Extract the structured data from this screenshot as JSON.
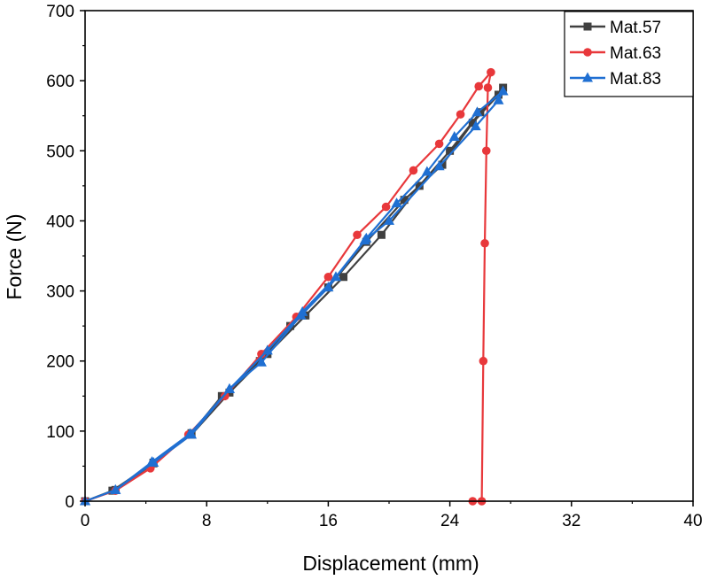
{
  "chart_data": {
    "type": "line",
    "title": "",
    "xlabel": "Displacement (mm)",
    "ylabel": "Force (N)",
    "xlim": [
      0,
      40
    ],
    "ylim": [
      0,
      700
    ],
    "xticks": [
      0,
      8,
      16,
      24,
      32,
      40
    ],
    "yticks": [
      0,
      100,
      200,
      300,
      400,
      500,
      600,
      700
    ],
    "grid": false,
    "legend_position": "top-right",
    "series": [
      {
        "name": "Mat.57",
        "color": "#404040",
        "marker": "square",
        "points": [
          [
            0,
            0
          ],
          [
            1.8,
            15
          ],
          [
            4.5,
            55
          ],
          [
            7,
            95
          ],
          [
            9.5,
            155
          ],
          [
            12,
            210
          ],
          [
            14.5,
            265
          ],
          [
            17,
            320
          ],
          [
            19.5,
            380
          ],
          [
            22,
            450
          ],
          [
            24,
            500
          ],
          [
            26,
            555
          ],
          [
            27.5,
            590
          ],
          [
            27.2,
            580
          ],
          [
            25.5,
            540
          ],
          [
            23.5,
            480
          ],
          [
            21,
            430
          ],
          [
            18.5,
            370
          ],
          [
            16,
            305
          ],
          [
            13.5,
            250
          ],
          [
            11.5,
            200
          ],
          [
            9,
            150
          ],
          [
            7,
            97
          ],
          [
            4.5,
            54
          ],
          [
            2,
            16
          ],
          [
            0,
            0
          ]
        ]
      },
      {
        "name": "Mat.63",
        "color": "#e8383b",
        "marker": "circle",
        "points": [
          [
            0,
            0
          ],
          [
            2,
            15
          ],
          [
            4.3,
            47
          ],
          [
            6.8,
            95
          ],
          [
            9.2,
            150
          ],
          [
            11.6,
            210
          ],
          [
            13.9,
            263
          ],
          [
            16,
            320
          ],
          [
            17.9,
            380
          ],
          [
            19.8,
            420
          ],
          [
            21.6,
            472
          ],
          [
            23.3,
            510
          ],
          [
            24.7,
            552
          ],
          [
            25.9,
            592
          ],
          [
            26.7,
            612
          ],
          [
            26.5,
            590
          ],
          [
            26.4,
            500
          ],
          [
            26.3,
            368
          ],
          [
            26.2,
            200
          ],
          [
            26.1,
            0
          ],
          [
            25.5,
            0
          ]
        ]
      },
      {
        "name": "Mat.83",
        "color": "#1f6fd2",
        "marker": "triangle",
        "points": [
          [
            0,
            0
          ],
          [
            2,
            16
          ],
          [
            4.5,
            55
          ],
          [
            7,
            95
          ],
          [
            9.5,
            160
          ],
          [
            12,
            215
          ],
          [
            14.3,
            270
          ],
          [
            16.5,
            320
          ],
          [
            18.5,
            375
          ],
          [
            20.5,
            425
          ],
          [
            22.5,
            470
          ],
          [
            24.3,
            520
          ],
          [
            25.8,
            555
          ],
          [
            27.5,
            585
          ],
          [
            27.2,
            572
          ],
          [
            25.7,
            535
          ],
          [
            23.3,
            478
          ],
          [
            20,
            400
          ],
          [
            18.4,
            372
          ],
          [
            16,
            305
          ],
          [
            14.2,
            265
          ],
          [
            11.6,
            198
          ],
          [
            9.5,
            160
          ],
          [
            6.9,
            96
          ],
          [
            4.4,
            56
          ],
          [
            2,
            16
          ],
          [
            0,
            0
          ]
        ]
      }
    ]
  }
}
